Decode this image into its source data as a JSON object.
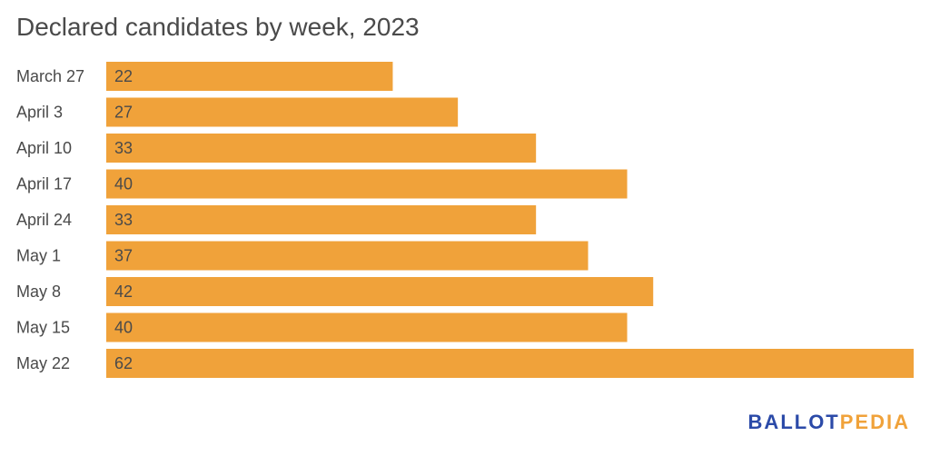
{
  "chart_data": {
    "type": "bar",
    "orientation": "horizontal",
    "title": "Declared candidates by week, 2023",
    "categories": [
      "March 27",
      "April 3",
      "April 10",
      "April 17",
      "April 24",
      "May 1",
      "May 8",
      "May 15",
      "May 22"
    ],
    "values": [
      22,
      27,
      33,
      40,
      33,
      37,
      42,
      40,
      62
    ],
    "xlim": [
      0,
      62
    ],
    "grid": false,
    "legend": "none",
    "bar_color": "#f0a23a",
    "label_color": "#4a4a4a"
  },
  "branding": {
    "logo_part1": "BALLOT",
    "logo_part2": "PEDIA",
    "logo_color_1": "#2b4aa8",
    "logo_color_2": "#f0a23a"
  }
}
